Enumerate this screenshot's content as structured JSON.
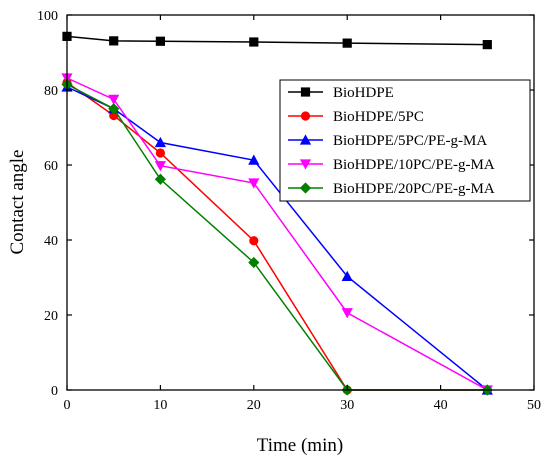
{
  "chart_data": {
    "type": "line",
    "title": "",
    "xlabel": "Time (min)",
    "ylabel": "Contact angle",
    "xlim": [
      0,
      50
    ],
    "ylim": [
      0,
      100
    ],
    "xticks": [
      0,
      10,
      20,
      30,
      40,
      50
    ],
    "yticks": [
      0,
      20,
      40,
      60,
      80,
      100
    ],
    "grid": false,
    "legend": "top-right",
    "series": [
      {
        "name": "BioHDPE",
        "color": "#000000",
        "marker": "square",
        "points": [
          [
            0,
            94.3
          ],
          [
            5,
            93.1
          ],
          [
            10,
            93.0
          ],
          [
            20,
            92.8
          ],
          [
            30,
            92.5
          ],
          [
            45,
            92.1
          ]
        ]
      },
      {
        "name": "BioHDPE/5PC",
        "color": "#ff0000",
        "marker": "circle",
        "points": [
          [
            0,
            82.0
          ],
          [
            5,
            73.2
          ],
          [
            10,
            63.2
          ],
          [
            20,
            39.8
          ],
          [
            30,
            0
          ],
          [
            45,
            0
          ]
        ]
      },
      {
        "name": "BioHDPE/5PC/PE-g-MA",
        "color": "#0000ff",
        "marker": "triangle-up",
        "points": [
          [
            0,
            80.8
          ],
          [
            5,
            75.0
          ],
          [
            10,
            66.0
          ],
          [
            20,
            61.3
          ],
          [
            30,
            30.3
          ],
          [
            45,
            0
          ]
        ]
      },
      {
        "name": "BioHDPE/10PC/PE-g-MA",
        "color": "#ff00ff",
        "marker": "triangle-down",
        "points": [
          [
            0,
            83.2
          ],
          [
            5,
            77.5
          ],
          [
            10,
            59.8
          ],
          [
            20,
            55.2
          ],
          [
            30,
            20.6
          ],
          [
            45,
            0
          ]
        ]
      },
      {
        "name": "BioHDPE/20PC/PE-g-MA",
        "color": "#008000",
        "marker": "diamond",
        "points": [
          [
            0,
            81.5
          ],
          [
            5,
            75.0
          ],
          [
            10,
            56.2
          ],
          [
            20,
            34.0
          ],
          [
            30,
            0
          ],
          [
            45,
            0
          ]
        ]
      }
    ]
  }
}
